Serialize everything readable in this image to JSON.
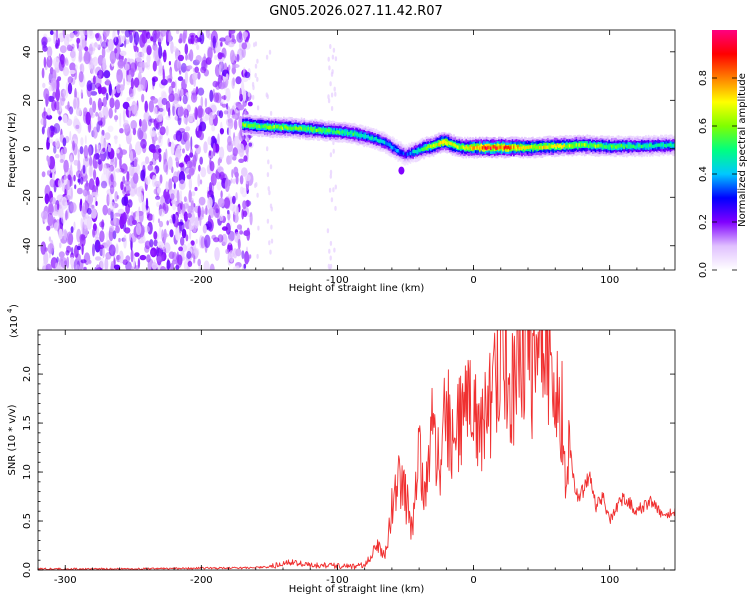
{
  "title": "GN05.2026.027.11.42.R07",
  "chart_data": [
    {
      "type": "heatmap",
      "name": "spectrogram",
      "xlabel": "Height of straight line (km)",
      "ylabel": "Frequency (Hz)",
      "xlim": [
        -320,
        148
      ],
      "ylim": [
        -50,
        49
      ],
      "xticks": [
        -300,
        -200,
        -100,
        0,
        100
      ],
      "xtick_labels": [
        "-300",
        "-200",
        "-100",
        "0",
        "100"
      ],
      "yticks": [
        -40,
        -20,
        0,
        20,
        40
      ],
      "ytick_labels": [
        "-40",
        "-20",
        "0",
        "20",
        "40"
      ],
      "noise_region_x": [
        -320,
        -167
      ],
      "ridge": {
        "x": [
          -170,
          -150,
          -130,
          -110,
          -90,
          -75,
          -65,
          -55,
          -50,
          -42,
          -35,
          -28,
          -22,
          -15,
          -8,
          0,
          10,
          20,
          40,
          60,
          80,
          100,
          120,
          148
        ],
        "y": [
          10,
          9,
          8.5,
          7.5,
          6.5,
          4.5,
          2.5,
          -1,
          -2.5,
          -1,
          0.5,
          1.5,
          3,
          1.5,
          0.5,
          0.5,
          0.5,
          0.5,
          0.5,
          1,
          1.5,
          1,
          1,
          1.5
        ],
        "level": [
          0.55,
          0.6,
          0.55,
          0.55,
          0.5,
          0.45,
          0.4,
          0.35,
          0.3,
          0.45,
          0.55,
          0.65,
          0.75,
          0.65,
          0.6,
          0.75,
          0.9,
          0.85,
          0.7,
          0.65,
          0.6,
          0.55,
          0.5,
          0.45
        ]
      },
      "colorbar": {
        "label": "Normalized spectral amplitude",
        "range": [
          0,
          1
        ],
        "ticks": [
          0.0,
          0.2,
          0.4,
          0.6,
          0.8
        ],
        "tick_labels": [
          "0.0",
          "0.2",
          "0.4",
          "0.6",
          "0.8"
        ],
        "colors": [
          "#ffffff",
          "#e0c0ff",
          "#8000ff",
          "#0000ff",
          "#00c8ff",
          "#00ff80",
          "#80ff00",
          "#ffff00",
          "#ff8000",
          "#ff0000",
          "#ff0080"
        ]
      }
    },
    {
      "type": "line",
      "name": "snr",
      "xlabel": "Height of straight line (km)",
      "ylabel": "SNR (10 * v/v)",
      "y_multiplier": "(x10",
      "y_multiplier_exponent": "4",
      "xlim": [
        -320,
        148
      ],
      "ylim": [
        0,
        2.45
      ],
      "xticks": [
        -300,
        -200,
        -100,
        0,
        100
      ],
      "xtick_labels": [
        "-300",
        "-200",
        "-100",
        "0",
        "100"
      ],
      "yticks": [
        0.0,
        0.5,
        1.0,
        1.5,
        2.0
      ],
      "ytick_labels": [
        "0.0",
        "0.5",
        "1.0",
        "1.5",
        "2.0"
      ],
      "line_color": "#f03030",
      "series": [
        {
          "name": "SNR",
          "x": [
            -320,
            -300,
            -250,
            -200,
            -170,
            -150,
            -135,
            -120,
            -100,
            -90,
            -80,
            -70,
            -65,
            -60,
            -55,
            -50,
            -45,
            -40,
            -35,
            -30,
            -25,
            -20,
            -15,
            -10,
            -5,
            0,
            5,
            10,
            15,
            20,
            25,
            30,
            35,
            40,
            45,
            50,
            55,
            60,
            65,
            68,
            70,
            75,
            80,
            85,
            90,
            95,
            100,
            110,
            120,
            130,
            140,
            148
          ],
          "y": [
            0.01,
            0.01,
            0.01,
            0.02,
            0.02,
            0.03,
            0.08,
            0.05,
            0.04,
            0.03,
            0.05,
            0.25,
            0.15,
            0.65,
            0.9,
            0.75,
            0.4,
            1.15,
            0.85,
            1.45,
            1.0,
            1.7,
            1.25,
            1.5,
            1.75,
            1.6,
            1.45,
            1.65,
            1.75,
            2.3,
            1.95,
            1.85,
            2.35,
            2.3,
            1.9,
            2.2,
            2.2,
            1.75,
            1.6,
            0.8,
            1.4,
            0.75,
            0.8,
            0.95,
            0.65,
            0.75,
            0.5,
            0.75,
            0.6,
            0.7,
            0.55,
            0.6
          ]
        }
      ]
    }
  ]
}
